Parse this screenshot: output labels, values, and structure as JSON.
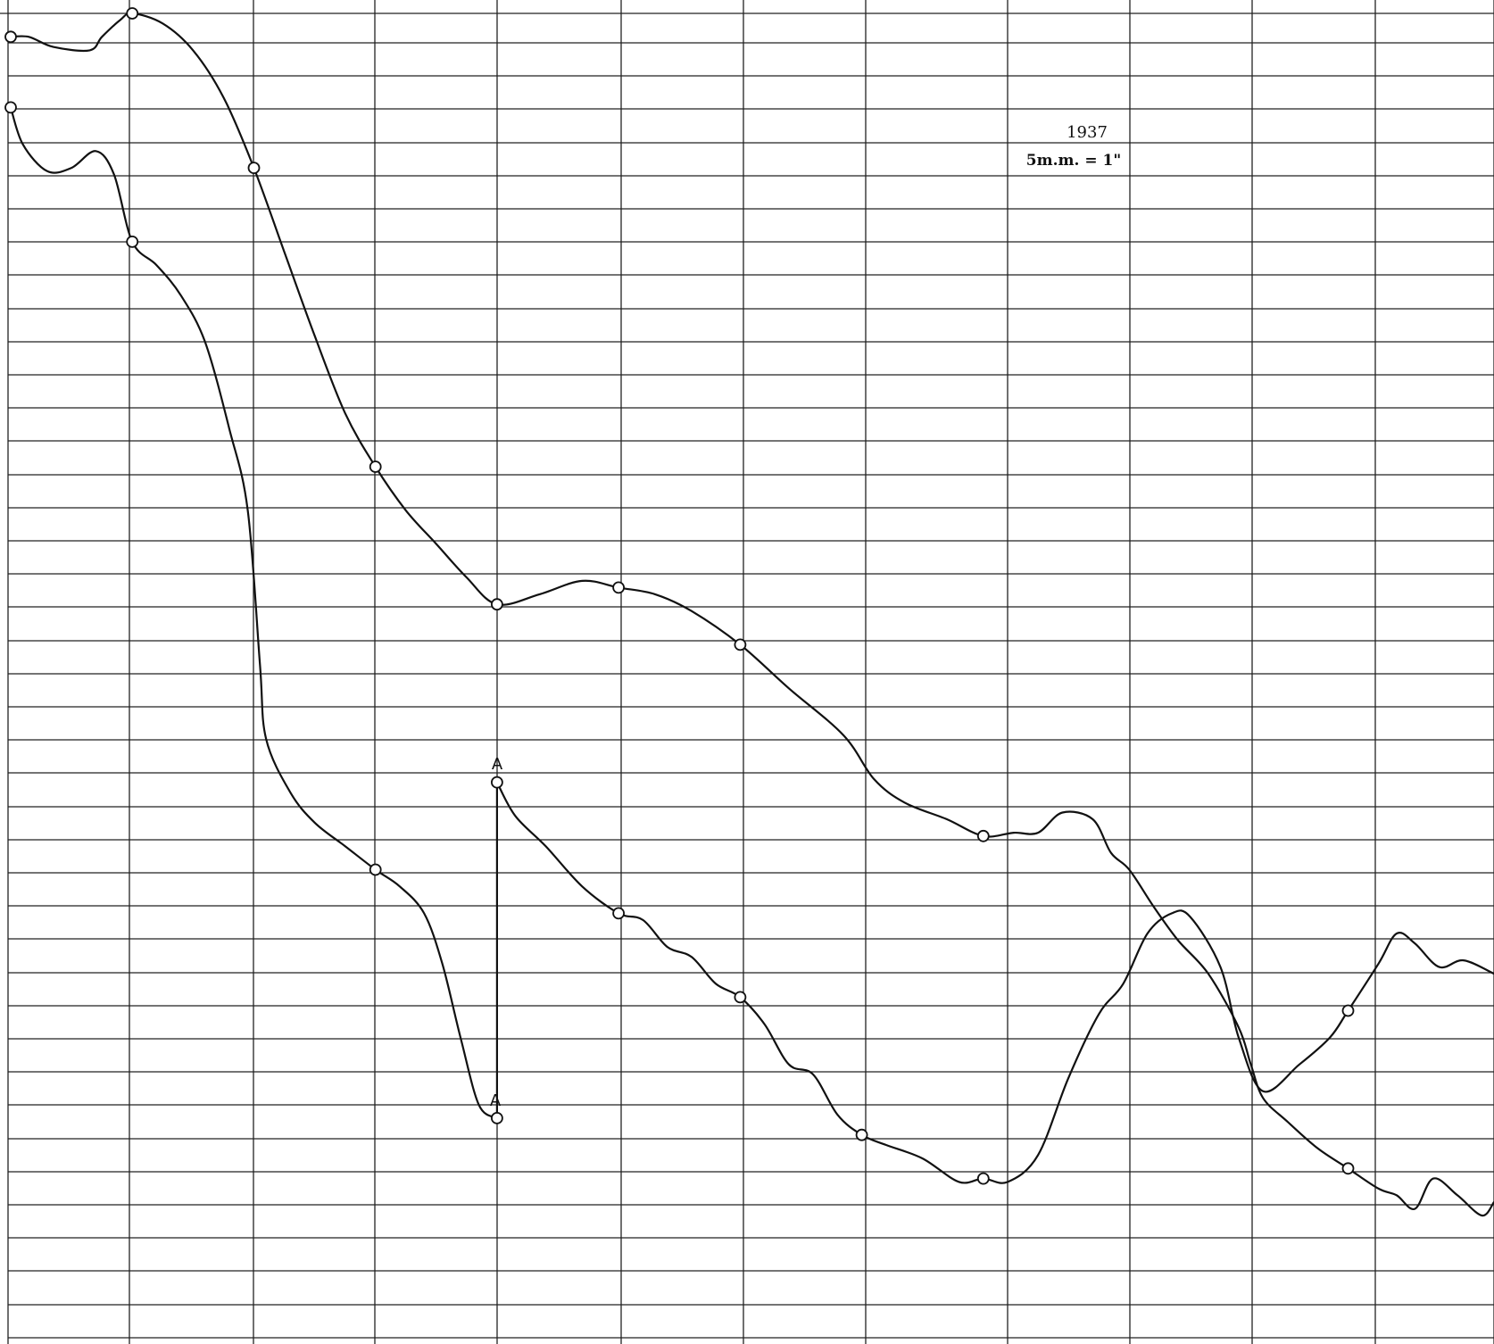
{
  "chart_data": {
    "type": "line",
    "title": "",
    "xlabel": "",
    "ylabel": "",
    "annotations": [
      "1937",
      "5m.m. = 1\""
    ],
    "point_labels": [
      "A",
      "A"
    ],
    "grid": true,
    "xlim": [
      0,
      12.2
    ],
    "ylim": [
      0,
      39.6
    ],
    "series": [
      {
        "values": [
          [
            0,
            38.9
          ],
          [
            0.15,
            38.9
          ],
          [
            0.35,
            38.6
          ],
          [
            0.65,
            38.5
          ],
          [
            0.75,
            38.9
          ],
          [
            0.9,
            39.4
          ],
          [
            1.0,
            39.6
          ],
          [
            1.25,
            39.3
          ],
          [
            1.5,
            38.5
          ],
          [
            1.75,
            37.1
          ],
          [
            2.0,
            35.0
          ],
          [
            2.25,
            32.5
          ],
          [
            2.5,
            30.0
          ],
          [
            2.75,
            27.7
          ],
          [
            3.0,
            26.1
          ],
          [
            3.25,
            24.8
          ],
          [
            3.5,
            23.8
          ],
          [
            3.75,
            22.8
          ],
          [
            4.0,
            22.0
          ],
          [
            4.35,
            22.3
          ],
          [
            4.7,
            22.7
          ],
          [
            5.0,
            22.5
          ],
          [
            5.3,
            22.3
          ],
          [
            5.6,
            21.8
          ],
          [
            6.0,
            20.8
          ],
          [
            6.4,
            19.5
          ],
          [
            6.85,
            18.1
          ],
          [
            7.1,
            16.8
          ],
          [
            7.35,
            16.1
          ],
          [
            7.7,
            15.6
          ],
          [
            8.0,
            15.1
          ],
          [
            8.25,
            15.2
          ],
          [
            8.45,
            15.2
          ],
          [
            8.65,
            15.8
          ],
          [
            8.9,
            15.6
          ],
          [
            9.05,
            14.6
          ],
          [
            9.2,
            14.1
          ],
          [
            9.4,
            13.0
          ],
          [
            9.6,
            12.0
          ],
          [
            9.85,
            11.0
          ],
          [
            10.1,
            9.4
          ],
          [
            10.2,
            8.3
          ],
          [
            10.3,
            7.3
          ],
          [
            10.5,
            6.6
          ],
          [
            10.75,
            5.8
          ],
          [
            11.0,
            5.2
          ],
          [
            11.25,
            4.6
          ],
          [
            11.4,
            4.4
          ],
          [
            11.55,
            4.0
          ],
          [
            11.7,
            4.9
          ],
          [
            11.9,
            4.4
          ],
          [
            12.1,
            3.8
          ],
          [
            12.2,
            4.2
          ]
        ]
      },
      {
        "values": [
          [
            0,
            36.8
          ],
          [
            0.1,
            35.7
          ],
          [
            0.3,
            34.9
          ],
          [
            0.5,
            35.0
          ],
          [
            0.7,
            35.5
          ],
          [
            0.85,
            34.8
          ],
          [
            1.0,
            32.8
          ],
          [
            1.2,
            32.1
          ],
          [
            1.4,
            31.2
          ],
          [
            1.6,
            29.8
          ],
          [
            1.8,
            27.2
          ],
          [
            1.95,
            24.8
          ],
          [
            2.05,
            20.2
          ],
          [
            2.1,
            18.0
          ],
          [
            2.3,
            16.4
          ],
          [
            2.5,
            15.5
          ],
          [
            2.75,
            14.8
          ],
          [
            3.0,
            14.1
          ],
          [
            3.2,
            13.6
          ],
          [
            3.4,
            12.8
          ],
          [
            3.55,
            11.3
          ],
          [
            3.7,
            9.1
          ],
          [
            3.85,
            7.1
          ],
          [
            4.0,
            6.7
          ]
        ]
      },
      {
        "values": [
          [
            4.0,
            16.7
          ],
          [
            4.15,
            15.7
          ],
          [
            4.4,
            14.8
          ],
          [
            4.7,
            13.6
          ],
          [
            5.0,
            12.8
          ],
          [
            5.2,
            12.6
          ],
          [
            5.4,
            11.8
          ],
          [
            5.6,
            11.5
          ],
          [
            5.8,
            10.7
          ],
          [
            6.0,
            10.3
          ],
          [
            6.2,
            9.5
          ],
          [
            6.4,
            8.3
          ],
          [
            6.6,
            8.0
          ],
          [
            6.8,
            6.8
          ],
          [
            7.0,
            6.2
          ],
          [
            7.2,
            5.9
          ],
          [
            7.5,
            5.5
          ],
          [
            7.8,
            4.8
          ],
          [
            8.0,
            4.9
          ],
          [
            8.2,
            4.8
          ],
          [
            8.45,
            5.6
          ],
          [
            8.7,
            7.9
          ],
          [
            8.95,
            9.8
          ],
          [
            9.15,
            10.7
          ],
          [
            9.35,
            12.2
          ],
          [
            9.55,
            12.8
          ],
          [
            9.7,
            12.7
          ],
          [
            9.95,
            11.2
          ],
          [
            10.1,
            9.1
          ],
          [
            10.3,
            7.5
          ],
          [
            10.6,
            8.3
          ],
          [
            10.85,
            9.1
          ],
          [
            11.0,
            9.9
          ],
          [
            11.25,
            11.3
          ],
          [
            11.4,
            12.2
          ],
          [
            11.55,
            11.9
          ],
          [
            11.75,
            11.2
          ],
          [
            11.95,
            11.4
          ],
          [
            12.2,
            11.0
          ]
        ]
      }
    ]
  }
}
